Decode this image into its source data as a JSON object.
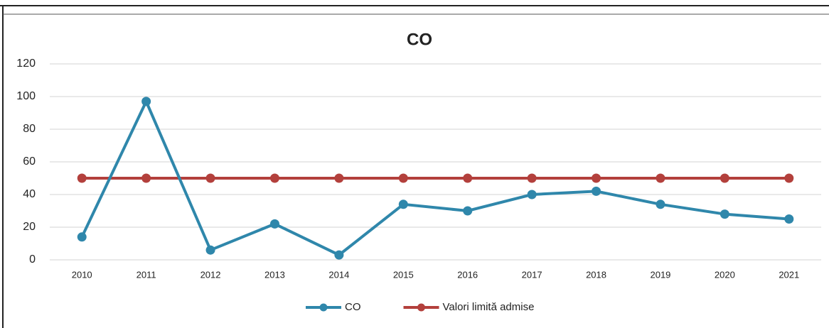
{
  "chart_data": {
    "type": "line",
    "title": "CO",
    "categories": [
      "2010",
      "2011",
      "2012",
      "2013",
      "2014",
      "2015",
      "2016",
      "2017",
      "2018",
      "2019",
      "2020",
      "2021"
    ],
    "series": [
      {
        "name": "CO",
        "color": "#2f87ab",
        "values": [
          14,
          97,
          6,
          22,
          3,
          34,
          30,
          40,
          42,
          34,
          28,
          25
        ]
      },
      {
        "name": "Valori limită admise",
        "color": "#b3403c",
        "values": [
          50,
          50,
          50,
          50,
          50,
          50,
          50,
          50,
          50,
          50,
          50,
          50
        ]
      }
    ],
    "ylim": [
      0,
      120
    ],
    "yticks": [
      0,
      20,
      40,
      60,
      80,
      100,
      120
    ],
    "grid": true,
    "legend": "bottom"
  }
}
